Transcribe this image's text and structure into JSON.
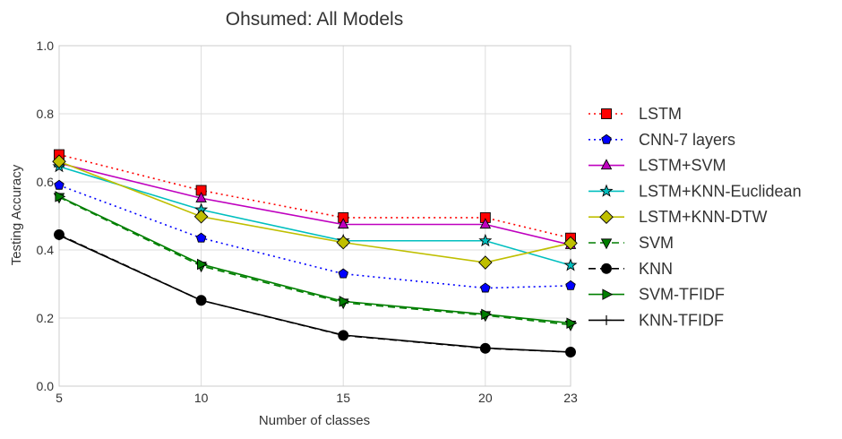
{
  "chart_data": {
    "type": "line",
    "title": "Ohsumed: All Models",
    "xlabel": "Number of classes",
    "ylabel": "Testing Accuracy",
    "x": [
      5,
      10,
      15,
      20,
      23
    ],
    "x_ticks": [
      "5",
      "10",
      "15",
      "20",
      "23"
    ],
    "xlim": [
      5,
      23
    ],
    "ylim": [
      0.0,
      1.0
    ],
    "y_ticks": [
      "0.0",
      "0.2",
      "0.4",
      "0.6",
      "0.8",
      "1.0"
    ],
    "grid": true,
    "legend_position": "right",
    "series": [
      {
        "name": "LSTM",
        "color": "#ff0000",
        "line_color": "#ff0000",
        "dash": "dotted",
        "marker": "square",
        "values": [
          0.68,
          0.575,
          0.495,
          0.495,
          0.435
        ]
      },
      {
        "name": "CNN-7 layers",
        "color": "#0000ff",
        "line_color": "#0000ff",
        "dash": "dotted",
        "marker": "pentagon",
        "values": [
          0.59,
          0.435,
          0.33,
          0.288,
          0.295
        ]
      },
      {
        "name": "LSTM+SVM",
        "color": "#bf00bf",
        "line_color": "#bf00bf",
        "dash": "solid",
        "marker": "triangle-up",
        "values": [
          0.655,
          0.552,
          0.475,
          0.475,
          0.415
        ]
      },
      {
        "name": "LSTM+KNN-Euclidean",
        "color": "#00bfbf",
        "line_color": "#00bfbf",
        "dash": "solid",
        "marker": "star",
        "values": [
          0.645,
          0.518,
          0.427,
          0.427,
          0.355
        ]
      },
      {
        "name": "LSTM+KNN-DTW",
        "color": "#bfbf00",
        "line_color": "#bfbf00",
        "dash": "solid",
        "marker": "diamond",
        "values": [
          0.66,
          0.498,
          0.422,
          0.363,
          0.42
        ]
      },
      {
        "name": "SVM",
        "color": "#007f00",
        "line_color": "#007f00",
        "dash": "dashed",
        "marker": "triangle-down",
        "values": [
          0.555,
          0.353,
          0.245,
          0.208,
          0.18
        ]
      },
      {
        "name": "KNN",
        "color": "#000000",
        "line_color": "#000000",
        "dash": "dashed",
        "marker": "circle",
        "values": [
          0.445,
          0.252,
          0.149,
          0.111,
          0.1
        ]
      },
      {
        "name": "SVM-TFIDF",
        "color": "#007f00",
        "line_color": "#007f00",
        "dash": "solid",
        "marker": "triangle-right",
        "values": [
          0.557,
          0.358,
          0.249,
          0.211,
          0.185
        ]
      },
      {
        "name": "KNN-TFIDF",
        "color": "#000000",
        "line_color": "#000000",
        "dash": "solid",
        "marker": "plus",
        "values": [
          0.443,
          0.252,
          0.15,
          0.112,
          0.1
        ]
      }
    ]
  }
}
